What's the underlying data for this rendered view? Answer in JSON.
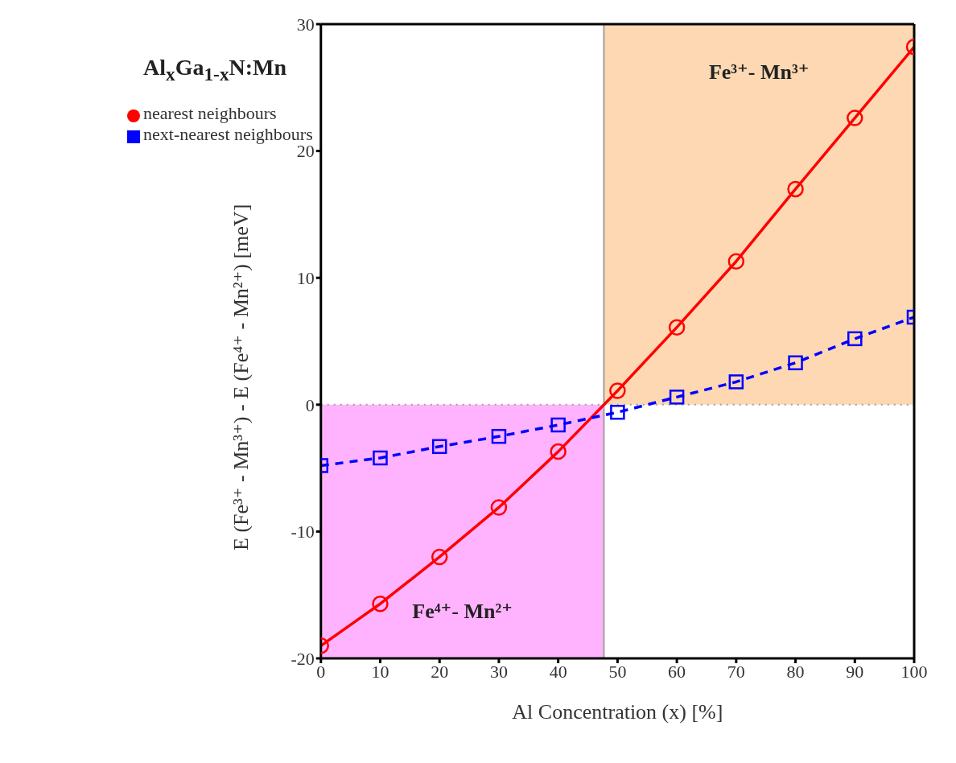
{
  "chart_data": {
    "type": "line",
    "xlabel": "Al Concentration (x)  [%]",
    "ylabel": "E (Fe³⁺ - Mn³⁺) - E (Fe⁴⁺ - Mn²⁺) [meV]",
    "annotations": [
      "Al$_{x}$Ga$_{1-x}$N:Mn"
    ],
    "x": [
      0,
      10,
      20,
      30,
      40,
      50,
      60,
      70,
      80,
      90,
      100
    ],
    "series": [
      {
        "name": "nearest neighbours",
        "color": "#ff0000",
        "marker": "circle",
        "line_style": "solid",
        "values": [
          -19.0,
          -15.7,
          -12.0,
          -8.1,
          -3.7,
          1.1,
          6.1,
          11.3,
          17.0,
          22.6,
          28.2
        ]
      },
      {
        "name": "next-nearest neighbours",
        "color": "#0000ff",
        "marker": "square",
        "line_style": "dashed",
        "values": [
          -4.8,
          -4.2,
          -3.3,
          -2.5,
          -1.6,
          -0.6,
          0.6,
          1.8,
          3.3,
          5.2,
          6.9
        ]
      }
    ],
    "xlim": [
      0,
      100
    ],
    "xticks": [
      0,
      10,
      20,
      30,
      40,
      50,
      60,
      70,
      80,
      90,
      100
    ],
    "ylim": [
      -20,
      30
    ],
    "yticks": [
      -20,
      -10,
      0,
      10,
      20,
      30
    ],
    "ref_lines": [
      {
        "axis": "x",
        "value": 47.7,
        "color": "#a0a0a0",
        "line_style": "solid"
      },
      {
        "axis": "y",
        "value": 0,
        "color": "#a0a0a0",
        "line_style": "dotted"
      }
    ],
    "bands": [
      {
        "axis": "x",
        "from": 0,
        "to": 47.7,
        "label": "Fe⁴⁺- Mn²⁺",
        "color": "#ffb3ff"
      },
      {
        "axis": "x",
        "from": 47.7,
        "to": 100,
        "label": "Fe³⁺- Mn³⁺",
        "color": "#fdd8b2"
      }
    ],
    "grid": false,
    "legend": "top left"
  }
}
